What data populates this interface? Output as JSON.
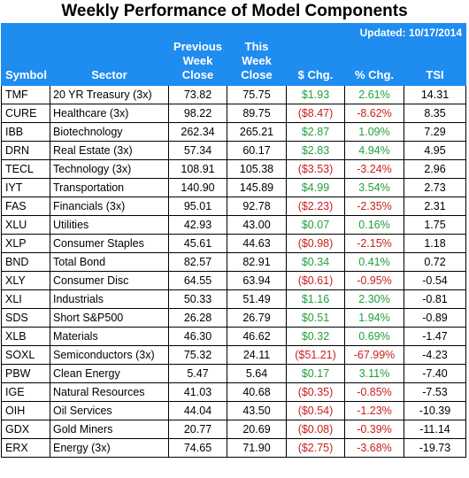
{
  "title": "Weekly Performance of Model Components",
  "updated": "Updated: 10/17/2014",
  "headers": {
    "symbol": "Symbol",
    "sector": "Sector",
    "prev": [
      "Previous",
      "Week",
      "Close"
    ],
    "this": [
      "This",
      "Week",
      "Close"
    ],
    "chg": "$ Chg.",
    "pct": "% Chg.",
    "tsi": "TSI"
  },
  "colors": {
    "header_bg": "#1f8cf0",
    "positive": "#22a03a",
    "negative": "#c8201e"
  },
  "rows": [
    {
      "symbol": "TMF",
      "sector": "20 YR Treasury (3x)",
      "prev": "73.82",
      "this": "75.75",
      "chg": "$1.93",
      "pct": "2.61%",
      "tsi": "14.31",
      "dir": "pos"
    },
    {
      "symbol": "CURE",
      "sector": "Healthcare (3x)",
      "prev": "98.22",
      "this": "89.75",
      "chg": "($8.47)",
      "pct": "-8.62%",
      "tsi": "8.35",
      "dir": "neg"
    },
    {
      "symbol": "IBB",
      "sector": "Biotechnology",
      "prev": "262.34",
      "this": "265.21",
      "chg": "$2.87",
      "pct": "1.09%",
      "tsi": "7.29",
      "dir": "pos"
    },
    {
      "symbol": "DRN",
      "sector": "Real Estate (3x)",
      "prev": "57.34",
      "this": "60.17",
      "chg": "$2.83",
      "pct": "4.94%",
      "tsi": "4.95",
      "dir": "pos"
    },
    {
      "symbol": "TECL",
      "sector": "Technology (3x)",
      "prev": "108.91",
      "this": "105.38",
      "chg": "($3.53)",
      "pct": "-3.24%",
      "tsi": "2.96",
      "dir": "neg"
    },
    {
      "symbol": "IYT",
      "sector": "Transportation",
      "prev": "140.90",
      "this": "145.89",
      "chg": "$4.99",
      "pct": "3.54%",
      "tsi": "2.73",
      "dir": "pos"
    },
    {
      "symbol": "FAS",
      "sector": "Financials (3x)",
      "prev": "95.01",
      "this": "92.78",
      "chg": "($2.23)",
      "pct": "-2.35%",
      "tsi": "2.31",
      "dir": "neg"
    },
    {
      "symbol": "XLU",
      "sector": "Utilities",
      "prev": "42.93",
      "this": "43.00",
      "chg": "$0.07",
      "pct": "0.16%",
      "tsi": "1.75",
      "dir": "pos"
    },
    {
      "symbol": "XLP",
      "sector": "Consumer Staples",
      "prev": "45.61",
      "this": "44.63",
      "chg": "($0.98)",
      "pct": "-2.15%",
      "tsi": "1.18",
      "dir": "neg"
    },
    {
      "symbol": "BND",
      "sector": "Total Bond",
      "prev": "82.57",
      "this": "82.91",
      "chg": "$0.34",
      "pct": "0.41%",
      "tsi": "0.72",
      "dir": "pos"
    },
    {
      "symbol": "XLY",
      "sector": "Consumer Disc",
      "prev": "64.55",
      "this": "63.94",
      "chg": "($0.61)",
      "pct": "-0.95%",
      "tsi": "-0.54",
      "dir": "neg"
    },
    {
      "symbol": "XLI",
      "sector": "Industrials",
      "prev": "50.33",
      "this": "51.49",
      "chg": "$1.16",
      "pct": "2.30%",
      "tsi": "-0.81",
      "dir": "pos"
    },
    {
      "symbol": "SDS",
      "sector": "Short S&P500",
      "prev": "26.28",
      "this": "26.79",
      "chg": "$0.51",
      "pct": "1.94%",
      "tsi": "-0.89",
      "dir": "pos"
    },
    {
      "symbol": "XLB",
      "sector": "Materials",
      "prev": "46.30",
      "this": "46.62",
      "chg": "$0.32",
      "pct": "0.69%",
      "tsi": "-1.47",
      "dir": "pos"
    },
    {
      "symbol": "SOXL",
      "sector": "Semiconductors (3x)",
      "prev": "75.32",
      "this": "24.11",
      "chg": "($51.21)",
      "pct": "-67.99%",
      "tsi": "-4.23",
      "dir": "neg"
    },
    {
      "symbol": "PBW",
      "sector": "Clean Energy",
      "prev": "5.47",
      "this": "5.64",
      "chg": "$0.17",
      "pct": "3.11%",
      "tsi": "-7.40",
      "dir": "pos"
    },
    {
      "symbol": "IGE",
      "sector": "Natural Resources",
      "prev": "41.03",
      "this": "40.68",
      "chg": "($0.35)",
      "pct": "-0.85%",
      "tsi": "-7.53",
      "dir": "neg"
    },
    {
      "symbol": "OIH",
      "sector": "Oil Services",
      "prev": "44.04",
      "this": "43.50",
      "chg": "($0.54)",
      "pct": "-1.23%",
      "tsi": "-10.39",
      "dir": "neg"
    },
    {
      "symbol": "GDX",
      "sector": "Gold Miners",
      "prev": "20.77",
      "this": "20.69",
      "chg": "($0.08)",
      "pct": "-0.39%",
      "tsi": "-11.14",
      "dir": "neg"
    },
    {
      "symbol": "ERX",
      "sector": "Energy (3x)",
      "prev": "74.65",
      "this": "71.90",
      "chg": "($2.75)",
      "pct": "-3.68%",
      "tsi": "-19.73",
      "dir": "neg"
    }
  ]
}
